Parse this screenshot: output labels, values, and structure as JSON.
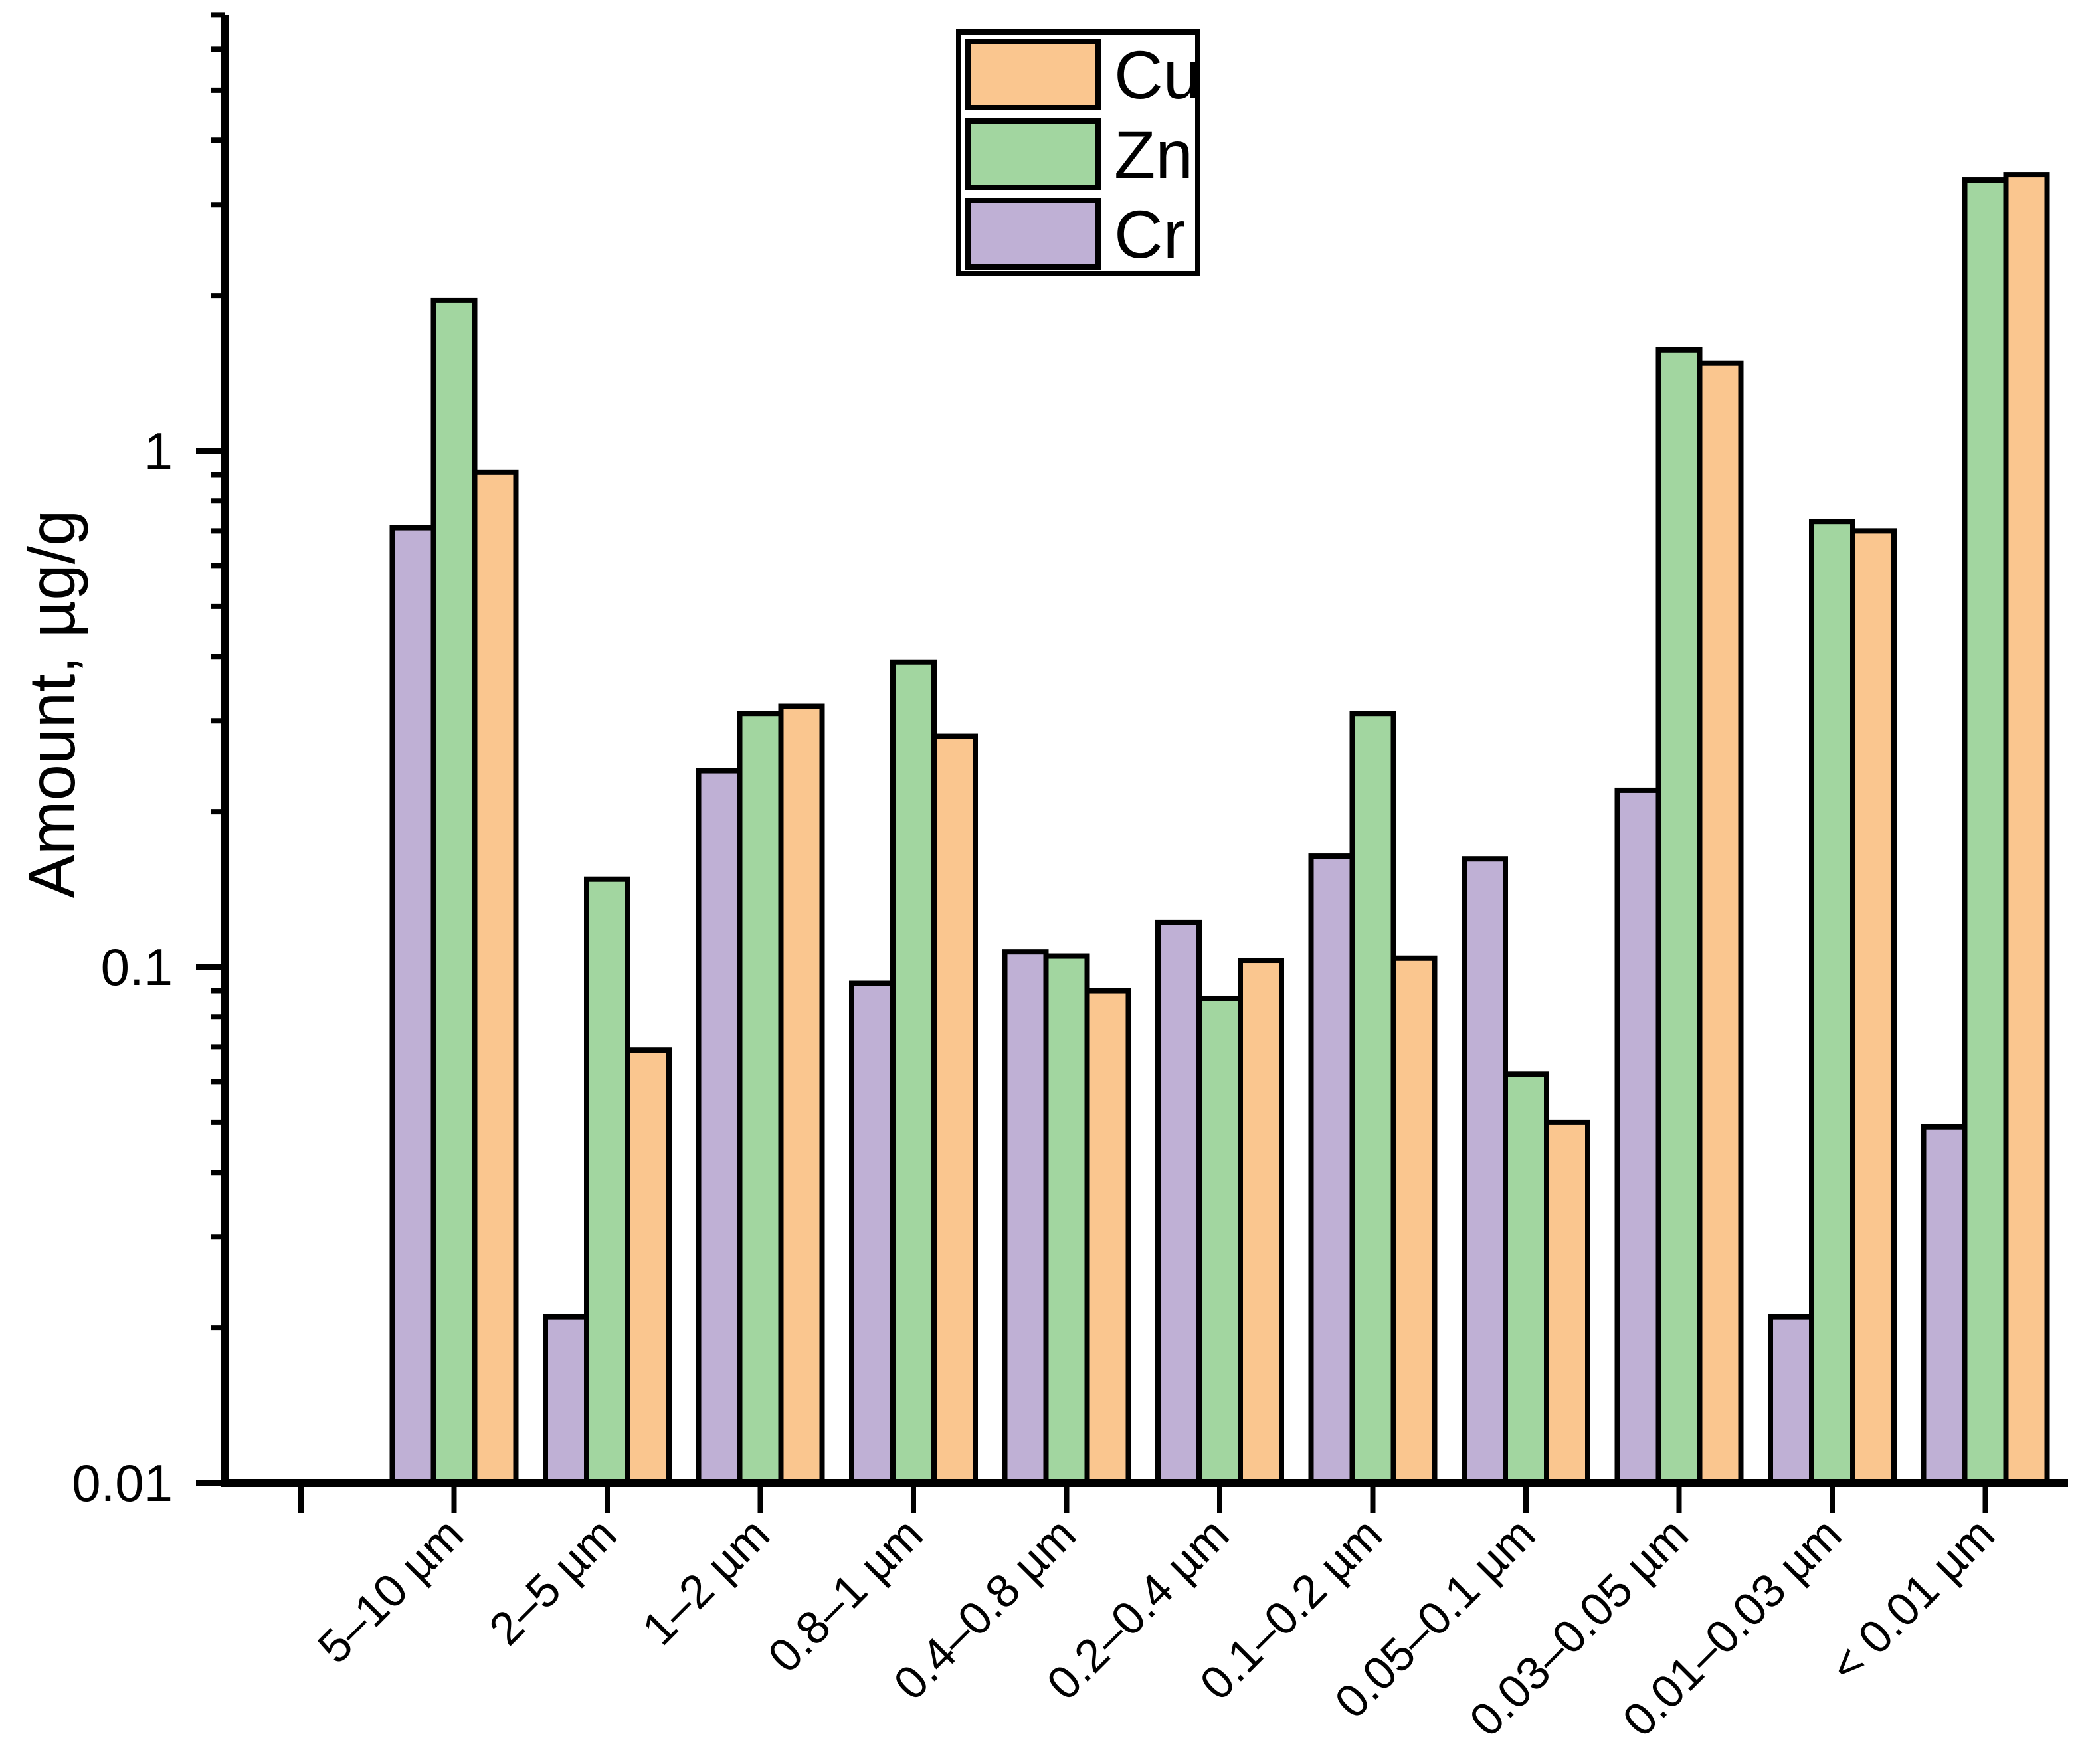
{
  "chart_data": {
    "type": "bar",
    "title": "",
    "xlabel": "",
    "ylabel": "Amount, µg/g",
    "yscale": "log",
    "ylim": [
      0.01,
      7
    ],
    "yticks": [
      1,
      0.1,
      0.01
    ],
    "ytick_labels": [
      "1",
      "0.1",
      "0.01"
    ],
    "grid": false,
    "background_color": "#ffffff",
    "edge_color": "#000000",
    "categories": [
      "5–10 µm",
      "2–5 µm",
      "1–2 µm",
      "0.8–1 µm",
      "0.4–0.8 µm",
      "0.2–0.4 µm",
      "0.1–0.2 µm",
      "0.05–0.1 µm",
      "0.03–0.05 µm",
      "0.01–0.03 µm",
      "< 0.01 µm"
    ],
    "series": [
      {
        "name": "Cu",
        "color": "#FAC68F",
        "values": [
          0.91,
          0.069,
          0.32,
          0.28,
          0.09,
          0.103,
          0.104,
          0.05,
          1.48,
          0.7,
          3.43
        ]
      },
      {
        "name": "Zn",
        "color": "#A2D6A0",
        "values": [
          1.96,
          0.148,
          0.31,
          0.39,
          0.105,
          0.087,
          0.31,
          0.062,
          1.57,
          0.73,
          3.35
        ]
      },
      {
        "name": "Cr",
        "color": "#BFB0D5",
        "values": [
          0.71,
          0.021,
          0.24,
          0.093,
          0.107,
          0.122,
          0.164,
          0.162,
          0.22,
          0.021,
          0.049
        ]
      }
    ],
    "bar_order": [
      "Cr",
      "Zn",
      "Cu"
    ],
    "legend": {
      "position": "top-center",
      "entries": [
        "Cu",
        "Zn",
        "Cr"
      ]
    }
  }
}
